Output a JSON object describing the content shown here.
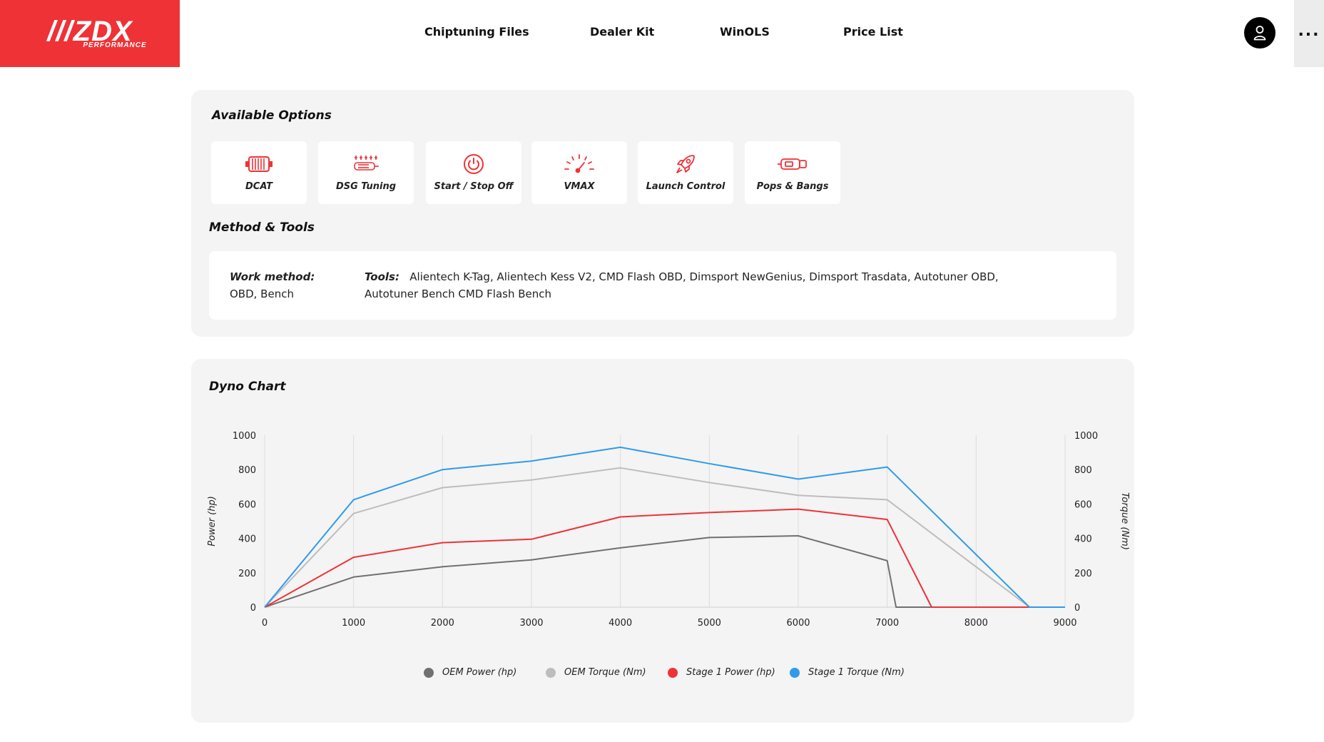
{
  "header": {
    "logo_main": "///ZDX",
    "logo_sub": "PERFORMANCE",
    "nav": [
      "Chiptuning Files",
      "Dealer Kit",
      "WinOLS",
      "Price List"
    ],
    "more_label": "..."
  },
  "options": {
    "title": "Available Options",
    "items": [
      {
        "label": "DCAT",
        "icon": "catalyst-icon"
      },
      {
        "label": "DSG Tuning",
        "icon": "dsg-gearbox-icon"
      },
      {
        "label": "Start / Stop Off",
        "icon": "power-button-icon"
      },
      {
        "label": "VMAX",
        "icon": "speedometer-icon"
      },
      {
        "label": "Launch Control",
        "icon": "rocket-icon"
      },
      {
        "label": "Pops & Bangs",
        "icon": "exhaust-icon"
      }
    ],
    "accent_color": "#ef3236"
  },
  "method": {
    "title": "Method & Tools",
    "work_method_label": "Work method:",
    "work_method_value": "OBD, Bench",
    "tools_label": "Tools:",
    "tools_value_line1": "Alientech K-Tag, Alientech Kess V2, CMD Flash OBD, Dimsport NewGenius, Dimsport Trasdata, Autotuner OBD,",
    "tools_value_line2": "Autotuner Bench CMD Flash Bench"
  },
  "dyno": {
    "title": "Dyno Chart"
  },
  "chart_data": {
    "type": "line",
    "title": "Dyno Chart",
    "xlabel": "",
    "ylabel": "Power (hp)",
    "y2label": "Torque (Nm)",
    "xlim": [
      0,
      9000
    ],
    "ylim": [
      0,
      1000
    ],
    "y2lim": [
      0,
      1000
    ],
    "xticks": [
      0,
      1000,
      2000,
      3000,
      4000,
      5000,
      6000,
      7000,
      8000,
      9000
    ],
    "yticks": [
      0,
      200,
      400,
      600,
      800,
      1000
    ],
    "grid": true,
    "legend_position": "bottom",
    "series": [
      {
        "name": "OEM Power (hp)",
        "color": "#707070",
        "x": [
          0,
          1000,
          2000,
          3000,
          4000,
          5000,
          6000,
          7000,
          7100,
          9000
        ],
        "y": [
          0,
          175,
          235,
          275,
          345,
          405,
          415,
          270,
          0,
          0
        ]
      },
      {
        "name": "OEM Torque (Nm)",
        "color": "#bdbdbd",
        "x": [
          0,
          1000,
          2000,
          3000,
          4000,
          5000,
          6000,
          7000,
          8600,
          9000
        ],
        "y": [
          0,
          545,
          695,
          740,
          810,
          725,
          650,
          625,
          0,
          0
        ]
      },
      {
        "name": "Stage 1 Power (hp)",
        "color": "#ef3236",
        "x": [
          0,
          1000,
          2000,
          3000,
          4000,
          5000,
          6000,
          7000,
          7500,
          9000
        ],
        "y": [
          0,
          290,
          375,
          395,
          525,
          550,
          570,
          510,
          0,
          0
        ]
      },
      {
        "name": "Stage 1 Torque (Nm)",
        "color": "#2e9bec",
        "x": [
          0,
          1000,
          2000,
          3000,
          4000,
          5000,
          6000,
          7000,
          8600,
          9000
        ],
        "y": [
          0,
          625,
          800,
          850,
          930,
          835,
          745,
          815,
          0,
          0
        ]
      }
    ]
  }
}
